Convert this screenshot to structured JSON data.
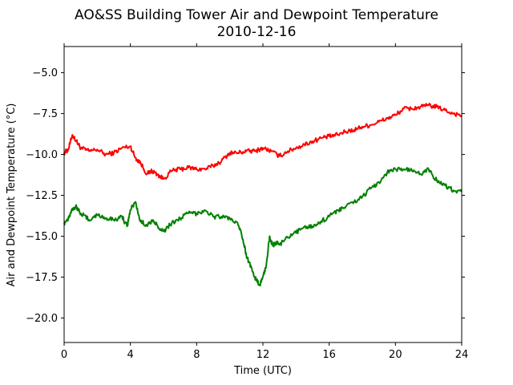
{
  "chart_data": {
    "type": "line",
    "title": "AO&SS Building Tower Air and Dewpoint Temperature",
    "subtitle": "2010-12-16",
    "xlabel": "Time (UTC)",
    "ylabel": "Air and Dewpoint Temperature (°C)",
    "xlim": [
      0,
      24
    ],
    "ylim": [
      -21.5,
      -3.4
    ],
    "xticks": [
      0,
      4,
      8,
      12,
      16,
      20,
      24
    ],
    "yticks": [
      -20.0,
      -17.5,
      -15.0,
      -12.5,
      -10.0,
      -7.5,
      -5.0
    ],
    "ytick_labels": [
      "−20.0",
      "−17.5",
      "−15.0",
      "−12.5",
      "−10.0",
      "−7.5",
      "−5.0"
    ],
    "grid": false,
    "series": [
      {
        "color": "#ff0000",
        "x": [
          0,
          0.25,
          0.5,
          0.75,
          1.0,
          1.5,
          2.0,
          2.5,
          3.0,
          3.5,
          4.0,
          4.3,
          4.6,
          5.0,
          5.3,
          5.6,
          6.0,
          6.5,
          7.0,
          7.5,
          8.0,
          8.5,
          9.0,
          9.5,
          10.0,
          10.5,
          11.0,
          11.5,
          12.0,
          12.5,
          13.0,
          13.5,
          14.0,
          14.5,
          15.0,
          15.5,
          16.0,
          16.5,
          17.0,
          17.5,
          18.0,
          18.5,
          19.0,
          19.5,
          20.0,
          20.5,
          21.0,
          21.5,
          22.0,
          22.5,
          23.0,
          23.5,
          24.0
        ],
        "y": [
          -9.9,
          -9.7,
          -8.8,
          -9.2,
          -9.6,
          -9.8,
          -9.7,
          -10.0,
          -9.9,
          -9.6,
          -9.5,
          -10.2,
          -10.5,
          -11.2,
          -11.0,
          -11.2,
          -11.5,
          -11.0,
          -10.9,
          -10.8,
          -10.9,
          -10.9,
          -10.7,
          -10.4,
          -9.9,
          -9.9,
          -9.8,
          -9.8,
          -9.6,
          -9.8,
          -10.1,
          -9.8,
          -9.6,
          -9.4,
          -9.2,
          -9.0,
          -8.9,
          -8.8,
          -8.6,
          -8.5,
          -8.3,
          -8.2,
          -8.0,
          -7.8,
          -7.6,
          -7.2,
          -7.2,
          -7.1,
          -7.0,
          -7.1,
          -7.3,
          -7.5,
          -7.6
        ]
      },
      {
        "color": "#008000",
        "x": [
          0,
          0.25,
          0.5,
          0.75,
          1.0,
          1.5,
          2.0,
          2.5,
          3.0,
          3.5,
          3.8,
          4.0,
          4.3,
          4.6,
          5.0,
          5.3,
          5.6,
          6.0,
          6.5,
          7.0,
          7.5,
          8.0,
          8.5,
          9.0,
          9.5,
          10.0,
          10.5,
          10.8,
          11.0,
          11.3,
          11.6,
          11.8,
          12.0,
          12.2,
          12.4,
          12.6,
          12.8,
          13.0,
          13.5,
          14.0,
          14.5,
          15.0,
          15.5,
          16.0,
          16.5,
          17.0,
          17.5,
          18.0,
          18.5,
          19.0,
          19.5,
          20.0,
          20.5,
          21.0,
          21.5,
          22.0,
          22.5,
          23.0,
          23.5,
          24.0
        ],
        "y": [
          -14.2,
          -13.9,
          -13.3,
          -13.2,
          -13.6,
          -14.0,
          -13.7,
          -13.9,
          -14.0,
          -13.8,
          -14.4,
          -13.4,
          -12.9,
          -14.1,
          -14.3,
          -14.1,
          -14.3,
          -14.7,
          -14.2,
          -13.9,
          -13.6,
          -13.6,
          -13.4,
          -13.8,
          -13.8,
          -13.9,
          -14.3,
          -15.2,
          -16.2,
          -16.9,
          -17.7,
          -18.0,
          -17.5,
          -16.8,
          -15.0,
          -15.6,
          -15.4,
          -15.5,
          -15.1,
          -14.8,
          -14.4,
          -14.4,
          -14.1,
          -13.8,
          -13.4,
          -13.2,
          -12.9,
          -12.6,
          -12.1,
          -11.7,
          -11.1,
          -10.9,
          -10.9,
          -11.0,
          -11.2,
          -10.9,
          -11.6,
          -11.9,
          -12.2,
          -12.3
        ]
      }
    ]
  }
}
